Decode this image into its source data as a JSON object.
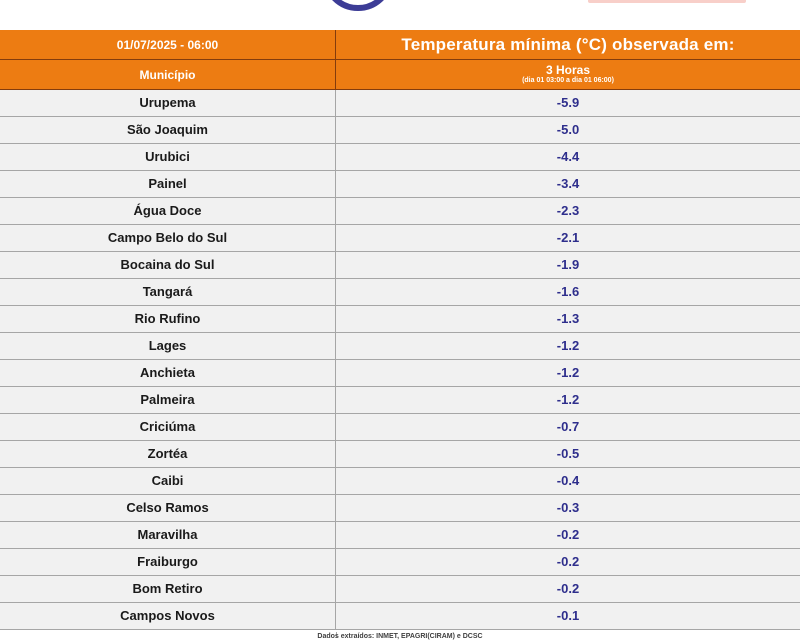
{
  "colors": {
    "header_bg": "#ED7C12",
    "header_border": "#843C0C",
    "header_text": "#FFFFFF",
    "row_bg": "#F1F1F1",
    "row_border": "#A6A6A6",
    "municipio_text": "#1A1A1A",
    "value_text": "#2E2E8C",
    "logo_blue": "#3C3C96",
    "logo_pink": "#F8CFC9",
    "footer_text": "#404040"
  },
  "header": {
    "date_time": "01/07/2025 - 06:00",
    "title": "Temperatura mínima (°C) observada em:",
    "col_left": "Município",
    "col_right": "3 Horas",
    "col_right_sub": "(dia 01 03:00 a dia 01 06:00)"
  },
  "table": {
    "rows": [
      {
        "municipio": "Urupema",
        "valor": "-5.9"
      },
      {
        "municipio": "São Joaquim",
        "valor": "-5.0"
      },
      {
        "municipio": "Urubici",
        "valor": "-4.4"
      },
      {
        "municipio": "Painel",
        "valor": "-3.4"
      },
      {
        "municipio": "Água Doce",
        "valor": "-2.3"
      },
      {
        "municipio": "Campo Belo do Sul",
        "valor": "-2.1"
      },
      {
        "municipio": "Bocaina do Sul",
        "valor": "-1.9"
      },
      {
        "municipio": "Tangará",
        "valor": "-1.6"
      },
      {
        "municipio": "Rio Rufino",
        "valor": "-1.3"
      },
      {
        "municipio": "Lages",
        "valor": "-1.2"
      },
      {
        "municipio": "Anchieta",
        "valor": "-1.2"
      },
      {
        "municipio": "Palmeira",
        "valor": "-1.2"
      },
      {
        "municipio": "Criciúma",
        "valor": "-0.7"
      },
      {
        "municipio": "Zortéa",
        "valor": "-0.5"
      },
      {
        "municipio": "Caibi",
        "valor": "-0.4"
      },
      {
        "municipio": "Celso Ramos",
        "valor": "-0.3"
      },
      {
        "municipio": "Maravilha",
        "valor": "-0.2"
      },
      {
        "municipio": "Fraiburgo",
        "valor": "-0.2"
      },
      {
        "municipio": "Bom Retiro",
        "valor": "-0.2"
      },
      {
        "municipio": "Campos Novos",
        "valor": "-0.1"
      }
    ]
  },
  "footer": {
    "source_note": "Dados extraídos: INMET, EPAGRI(CIRAM) e DCSC"
  },
  "icons": {
    "logo_arc": "circular-logo-bottom-arc",
    "logo_pink": "cropped-logo-strip"
  },
  "chart_data": {
    "type": "table",
    "title": "Temperatura mínima (°C) observada em:",
    "subtitle": "01/07/2025 - 06:00",
    "columns": [
      "Município",
      "3 Horas (dia 01 03:00 a dia 01 06:00)"
    ],
    "categories": [
      "Urupema",
      "São Joaquim",
      "Urubici",
      "Painel",
      "Água Doce",
      "Campo Belo do Sul",
      "Bocaina do Sul",
      "Tangará",
      "Rio Rufino",
      "Lages",
      "Anchieta",
      "Palmeira",
      "Criciúma",
      "Zortéa",
      "Caibi",
      "Celso Ramos",
      "Maravilha",
      "Fraiburgo",
      "Bom Retiro",
      "Campos Novos"
    ],
    "values": [
      -5.9,
      -5.0,
      -4.4,
      -3.4,
      -2.3,
      -2.1,
      -1.9,
      -1.6,
      -1.3,
      -1.2,
      -1.2,
      -1.2,
      -0.7,
      -0.5,
      -0.4,
      -0.3,
      -0.2,
      -0.2,
      -0.2,
      -0.1
    ],
    "unit": "°C"
  }
}
